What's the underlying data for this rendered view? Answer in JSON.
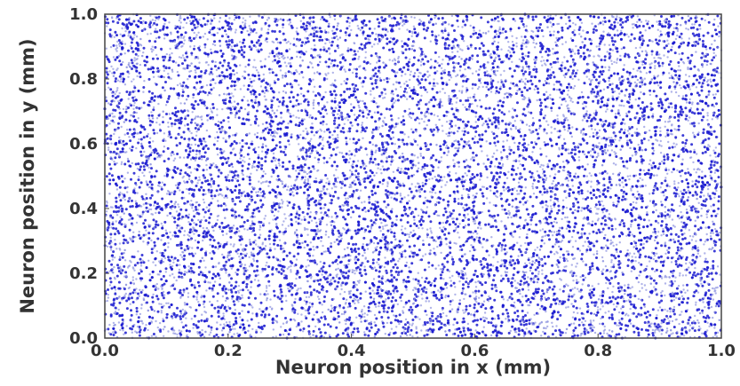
{
  "chart_data": {
    "type": "scatter",
    "title": "",
    "xlabel": "Neuron position in x (mm)",
    "ylabel": "Neuron position in y (mm)",
    "xlim": [
      0.0,
      1.0
    ],
    "ylim": [
      0.0,
      1.0
    ],
    "x_ticks": [
      "0.0",
      "0.2",
      "0.4",
      "0.6",
      "0.8",
      "1.0"
    ],
    "y_ticks": [
      "0.0",
      "0.2",
      "0.4",
      "0.6",
      "0.8",
      "1.0"
    ],
    "grid": false,
    "legend": "none",
    "marker_color": "#1a1ad0",
    "marker_color_light": "#8f94e0",
    "series": [
      {
        "distribution": "uniform random over [0,1] x [0,1]",
        "approx_point_count": 12000
      }
    ]
  }
}
